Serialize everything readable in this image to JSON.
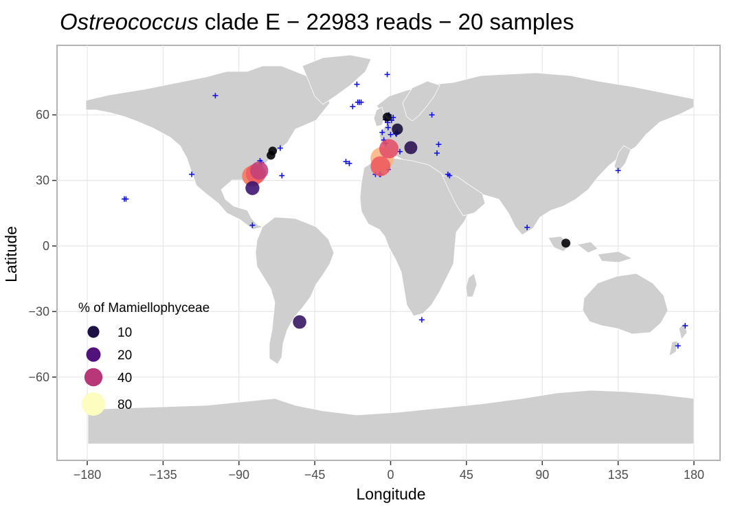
{
  "title": {
    "italic": "Ostreococcus",
    "rest": " clade E − 22983 reads − 20 samples"
  },
  "chart_data": {
    "type": "scatter",
    "xlabel": "Longitude",
    "ylabel": "Latitude",
    "xlim": [
      -195,
      197
    ],
    "ylim": [
      -90,
      90
    ],
    "x_ticks": [
      -180,
      -135,
      -90,
      -45,
      0,
      45,
      90,
      135,
      180
    ],
    "x_tick_labels": [
      "−180",
      "−135",
      "−90",
      "−45",
      "0",
      "45",
      "90",
      "135",
      "180"
    ],
    "y_ticks": [
      -60,
      -30,
      0,
      30,
      60
    ],
    "y_tick_labels": [
      "−60",
      "−30",
      "0",
      "30",
      "60"
    ],
    "grid": true,
    "legend": {
      "title": "% of Mamiellophyceae",
      "position": "bottom-left",
      "entries": [
        {
          "label": "10",
          "value": 10,
          "color": "#1c1044"
        },
        {
          "label": "20",
          "value": 20,
          "color": "#51127c"
        },
        {
          "label": "40",
          "value": 40,
          "color": "#b73779"
        },
        {
          "label": "80",
          "value": 80,
          "color": "#fcfdbf"
        }
      ]
    },
    "samples": [
      {
        "lon": -5,
        "lat": 40,
        "pct": 80,
        "color": "#fbb47e"
      },
      {
        "lon": -6,
        "lat": 36.5,
        "pct": 52,
        "color": "#ee5a5e"
      },
      {
        "lon": -1,
        "lat": 44.5,
        "pct": 48,
        "color": "#e44f68"
      },
      {
        "lon": -78,
        "lat": 34.5,
        "pct": 40,
        "color": "#c2407a"
      },
      {
        "lon": -82,
        "lat": 32,
        "pct": 58,
        "color": "#f6795e"
      },
      {
        "lon": -80,
        "lat": 33,
        "pct": 52,
        "color": "#ef5b5e"
      },
      {
        "lon": -82,
        "lat": 26.5,
        "pct": 18,
        "color": "#3a0f6e"
      },
      {
        "lon": -54,
        "lat": -34.8,
        "pct": 16,
        "color": "#32105f"
      },
      {
        "lon": 12,
        "lat": 45,
        "pct": 14,
        "color": "#2a1052"
      },
      {
        "lon": 4,
        "lat": 53.5,
        "pct": 8,
        "color": "#140b36"
      },
      {
        "lon": -2,
        "lat": 59,
        "pct": 3,
        "color": "#000004"
      },
      {
        "lon": -71,
        "lat": 41.5,
        "pct": 2.5,
        "color": "#000004"
      },
      {
        "lon": -70,
        "lat": 43.5,
        "pct": 2.5,
        "color": "#000004"
      },
      {
        "lon": 104,
        "lat": 1.3,
        "pct": 3,
        "color": "#000004"
      }
    ],
    "stations": [
      [
        -104,
        68.8
      ],
      [
        -77.5,
        39
      ],
      [
        -76.8,
        38.2
      ],
      [
        -65.5,
        44.8
      ],
      [
        -64.5,
        32.2
      ],
      [
        -118,
        32.8
      ],
      [
        -158,
        21.5
      ],
      [
        -157,
        21.5
      ],
      [
        -82,
        9.5
      ],
      [
        -26.5,
        38.6
      ],
      [
        -24.5,
        37.8
      ],
      [
        -22.5,
        63.8
      ],
      [
        -19.5,
        65.8
      ],
      [
        -18.5,
        65.8
      ],
      [
        -17.5,
        65.8
      ],
      [
        -20,
        74
      ],
      [
        -2,
        78.5
      ],
      [
        -5,
        52
      ],
      [
        -4,
        48.5
      ],
      [
        -3,
        57.8
      ],
      [
        -1.5,
        54.2
      ],
      [
        -1.8,
        56.5
      ],
      [
        -1,
        60
      ],
      [
        0,
        51
      ],
      [
        0.5,
        57.5
      ],
      [
        1.5,
        58.8
      ],
      [
        3,
        51.5
      ],
      [
        3.5,
        51.2
      ],
      [
        4,
        52
      ],
      [
        5.5,
        43.2
      ],
      [
        -6.5,
        32.8
      ],
      [
        -6,
        32.8
      ],
      [
        -1.5,
        35
      ],
      [
        -3,
        47
      ],
      [
        24.5,
        60
      ],
      [
        28.5,
        46.5
      ],
      [
        27.5,
        42.5
      ],
      [
        34,
        32.8
      ],
      [
        35,
        32.2
      ],
      [
        -9,
        32.8
      ],
      [
        18.5,
        -33.8
      ],
      [
        135,
        34.5
      ],
      [
        81,
        8.5
      ],
      [
        174.8,
        -36.5
      ],
      [
        170.5,
        -45.7
      ]
    ]
  }
}
